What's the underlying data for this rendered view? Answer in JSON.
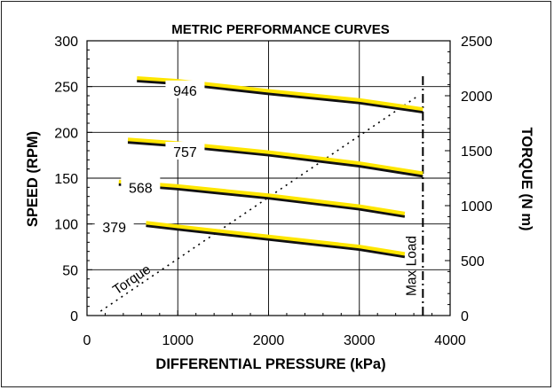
{
  "chart_data": {
    "type": "line",
    "title": "METRIC PERFORMANCE CURVES",
    "xlabel": "DIFFERENTIAL PRESSURE (kPa)",
    "ylabel": "SPEED (RPM)",
    "y2label": "TORQUE (N m)",
    "xlim": [
      0,
      4000
    ],
    "ylim": [
      0,
      300
    ],
    "y2lim": [
      0,
      2500
    ],
    "xticks": [
      0,
      1000,
      2000,
      3000,
      4000
    ],
    "yticks": [
      0,
      50,
      100,
      150,
      200,
      250,
      300
    ],
    "y2ticks": [
      0,
      500,
      1000,
      1500,
      2000,
      2500
    ],
    "grid": true,
    "series": [
      {
        "name": "946",
        "label_at": [
          1080,
          246
        ],
        "x": [
          550,
          1000,
          2000,
          3000,
          3700
        ],
        "y": [
          256,
          253,
          242,
          232,
          222
        ]
      },
      {
        "name": "757",
        "label_at": [
          1080,
          179
        ],
        "x": [
          450,
          1000,
          2000,
          3000,
          3700
        ],
        "y": [
          189,
          185,
          175,
          163,
          152
        ]
      },
      {
        "name": "568",
        "label_at": [
          590,
          140
        ],
        "x": [
          350,
          1000,
          2000,
          3000,
          3500
        ],
        "y": [
          143,
          138,
          128,
          116,
          108
        ]
      },
      {
        "name": "379",
        "label_at": [
          300,
          97
        ],
        "x": [
          650,
          1000,
          2000,
          3000,
          3500
        ],
        "y": [
          98,
          94,
          83,
          72,
          64
        ]
      }
    ],
    "torque_line": {
      "name": "Torque",
      "x": [
        150,
        3650
      ],
      "y2": [
        40,
        2000
      ]
    },
    "max_load_line": {
      "name": "Max Load",
      "x": 3700,
      "y2_range": [
        0,
        2200
      ]
    }
  },
  "colors": {
    "curve": "#111111",
    "highlight": "#ffe600",
    "grid": "#000000"
  }
}
